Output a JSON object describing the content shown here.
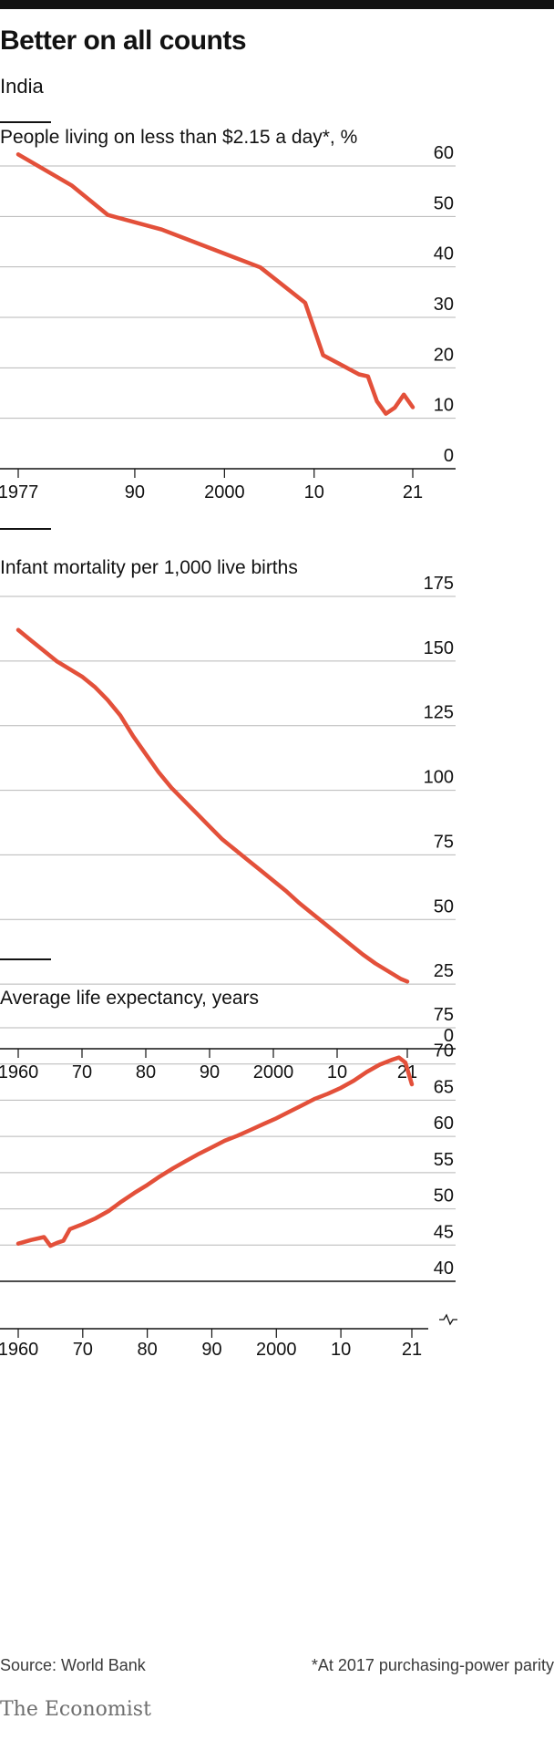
{
  "title": "Better on all counts",
  "subtitle": "India",
  "source": "Source: World Bank",
  "note": "*At 2017 purchasing-power parity",
  "logo": "The Economist",
  "colors": {
    "line": "#e3503a",
    "grid": "#b7b7b7",
    "axis": "#121212",
    "text": "#121212"
  },
  "chart_data": [
    {
      "type": "line",
      "title": "People living on less than $2.15 a day*, %",
      "ylim": [
        0,
        60
      ],
      "yticks": [
        0,
        10,
        20,
        30,
        40,
        50,
        60
      ],
      "xlim": [
        1977,
        2021
      ],
      "xticks": [
        1977,
        1990,
        2000,
        2010,
        2021
      ],
      "xtick_labels": [
        "1977",
        "90",
        "2000",
        "10",
        "21"
      ],
      "series": [
        {
          "x": [
            1977,
            1983,
            1987,
            1993,
            2004,
            2009,
            2011,
            2015,
            2016,
            2017,
            2018,
            2019,
            2020,
            2021
          ],
          "values": [
            62.3,
            56.1,
            50.3,
            47.4,
            39.9,
            32.9,
            22.5,
            18.7,
            18.3,
            13.4,
            10.9,
            12.1,
            14.7,
            12.2
          ]
        }
      ]
    },
    {
      "type": "line",
      "title": "Infant mortality per 1,000 live births",
      "ylim": [
        0,
        175
      ],
      "yticks": [
        0,
        25,
        50,
        75,
        100,
        125,
        150,
        175
      ],
      "xlim": [
        1960,
        2021
      ],
      "xticks": [
        1960,
        1970,
        1980,
        1990,
        2000,
        2010,
        2021
      ],
      "xtick_labels": [
        "1960",
        "70",
        "80",
        "90",
        "2000",
        "10",
        "21"
      ],
      "series": [
        {
          "x": [
            1960,
            1962,
            1964,
            1966,
            1968,
            1970,
            1972,
            1974,
            1976,
            1978,
            1980,
            1982,
            1984,
            1986,
            1988,
            1990,
            1992,
            1994,
            1996,
            1998,
            2000,
            2002,
            2004,
            2006,
            2008,
            2010,
            2012,
            2014,
            2016,
            2018,
            2020,
            2021
          ],
          "values": [
            162,
            158,
            154,
            150,
            147,
            144,
            140,
            135,
            129,
            121,
            114,
            107,
            101,
            96,
            91,
            86,
            81,
            77,
            73,
            69,
            65,
            61,
            56.5,
            52.5,
            48.5,
            44.5,
            40.5,
            36.5,
            33,
            30,
            27,
            26
          ]
        }
      ]
    },
    {
      "type": "line",
      "title": "Average life expectancy, years",
      "ylim": [
        40,
        75
      ],
      "yticks": [
        40,
        45,
        50,
        55,
        60,
        65,
        70,
        75
      ],
      "y_axis_break": true,
      "xlim": [
        1960,
        2021
      ],
      "xticks": [
        1960,
        1970,
        1980,
        1990,
        2000,
        2010,
        2021
      ],
      "xtick_labels": [
        "1960",
        "70",
        "80",
        "90",
        "2000",
        "10",
        "21"
      ],
      "series": [
        {
          "x": [
            1960,
            1962,
            1964,
            1965,
            1966,
            1967,
            1968,
            1970,
            1972,
            1974,
            1976,
            1978,
            1980,
            1982,
            1984,
            1986,
            1988,
            1990,
            1992,
            1994,
            1996,
            1998,
            2000,
            2002,
            2004,
            2006,
            2008,
            2010,
            2012,
            2014,
            2016,
            2018,
            2019,
            2020,
            2021
          ],
          "values": [
            45.2,
            45.7,
            46.1,
            44.9,
            45.3,
            45.6,
            47.2,
            47.9,
            48.7,
            49.7,
            51.0,
            52.2,
            53.3,
            54.5,
            55.6,
            56.6,
            57.6,
            58.5,
            59.4,
            60.1,
            60.9,
            61.7,
            62.5,
            63.4,
            64.3,
            65.2,
            65.9,
            66.7,
            67.7,
            68.9,
            69.9,
            70.6,
            70.9,
            70.2,
            67.2
          ]
        }
      ]
    }
  ]
}
